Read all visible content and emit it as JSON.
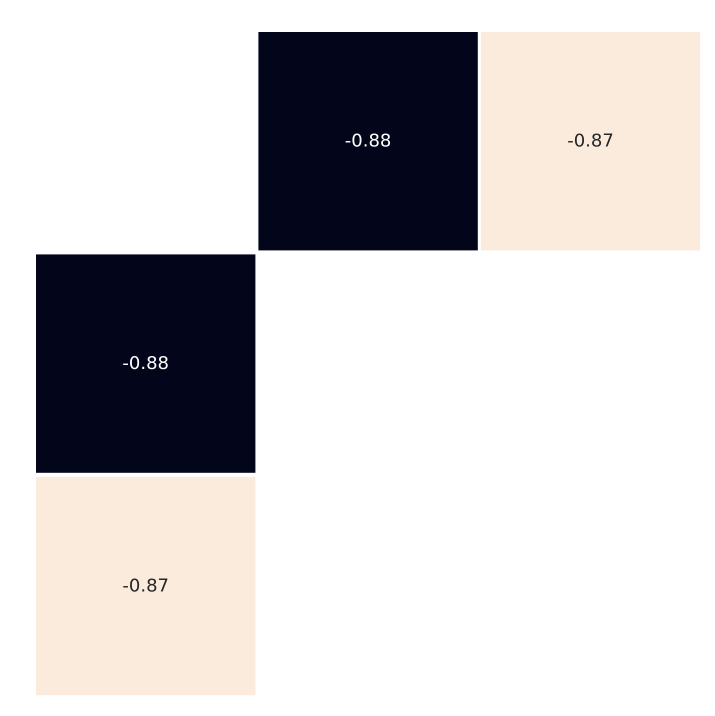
{
  "chart_data": {
    "type": "heatmap",
    "rows": 3,
    "cols": 3,
    "cells": [
      {
        "row": 0,
        "col": 1,
        "value": -0.88,
        "label": "-0.88",
        "color": "#03061a",
        "text_color": "#ffffff"
      },
      {
        "row": 0,
        "col": 2,
        "value": -0.87,
        "label": "-0.87",
        "color": "#faebdd",
        "text_color": "#262626"
      },
      {
        "row": 1,
        "col": 0,
        "value": -0.88,
        "label": "-0.88",
        "color": "#03061a",
        "text_color": "#ffffff"
      },
      {
        "row": 2,
        "col": 0,
        "value": -0.87,
        "label": "-0.87",
        "color": "#faebdd",
        "text_color": "#262626"
      }
    ],
    "masked": "lower-right and diagonal cells are blank",
    "grid": false,
    "colorbar": false
  }
}
